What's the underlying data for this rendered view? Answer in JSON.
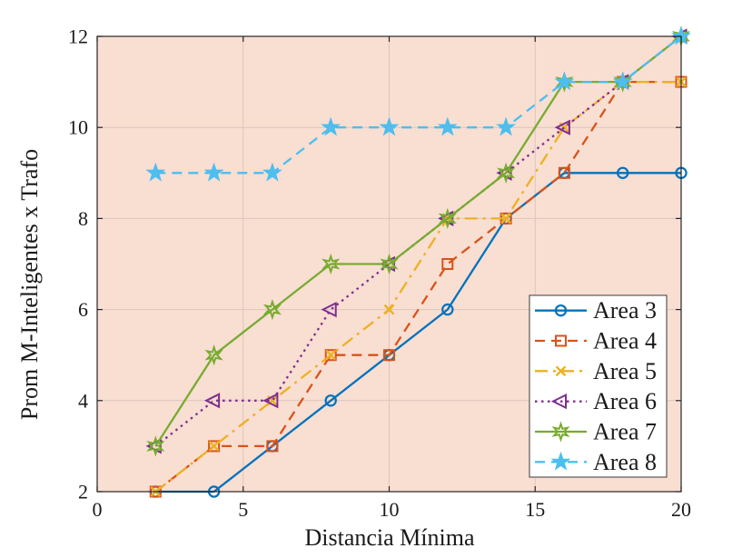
{
  "chart_data": {
    "type": "line",
    "title": "",
    "xlabel": "Distancia Mínima",
    "ylabel": "Prom M-Inteligentes x Trafo",
    "xlim": [
      0,
      20
    ],
    "ylim": [
      2,
      12
    ],
    "xticks": [
      0,
      5,
      10,
      15,
      20
    ],
    "yticks": [
      2,
      4,
      6,
      8,
      10,
      12
    ],
    "grid": true,
    "legend_position": "inside-right-center",
    "x": [
      2,
      4,
      6,
      8,
      10,
      12,
      14,
      16,
      18,
      20
    ],
    "series": [
      {
        "name": "Area 3",
        "color": "#0072BD",
        "line": "solid",
        "marker": "circle",
        "values": [
          2,
          2,
          3,
          4,
          5,
          6,
          8,
          9,
          9,
          9
        ]
      },
      {
        "name": "Area 4",
        "color": "#D95319",
        "line": "dashed",
        "marker": "square",
        "values": [
          2,
          3,
          3,
          5,
          5,
          7,
          8,
          9,
          11,
          11
        ]
      },
      {
        "name": "Area 5",
        "color": "#EDB120",
        "line": "dashdot",
        "marker": "x",
        "values": [
          2,
          3,
          4,
          5,
          6,
          8,
          8,
          10,
          11,
          11
        ]
      },
      {
        "name": "Area 6",
        "color": "#7E2F8E",
        "line": "dotted",
        "marker": "triangle-left",
        "values": [
          3,
          4,
          4,
          6,
          7,
          8,
          9,
          10,
          11,
          12
        ]
      },
      {
        "name": "Area 7",
        "color": "#77AC30",
        "line": "solid",
        "marker": "hexagram",
        "values": [
          3,
          5,
          6,
          7,
          7,
          8,
          9,
          11,
          11,
          12
        ]
      },
      {
        "name": "Area 8",
        "color": "#4DBEEE",
        "line": "dashed",
        "marker": "star",
        "values": [
          9,
          9,
          9,
          10,
          10,
          10,
          10,
          11,
          11,
          12
        ]
      }
    ],
    "colors": {
      "plot_background": "#F9DED2",
      "figure_background": "#FFFFFF",
      "grid": "#DCC6BD",
      "axis": "#262626",
      "text": "#1a1a1a",
      "legend_background": "#FFFFFF",
      "legend_border": "#3B3B3B"
    }
  }
}
